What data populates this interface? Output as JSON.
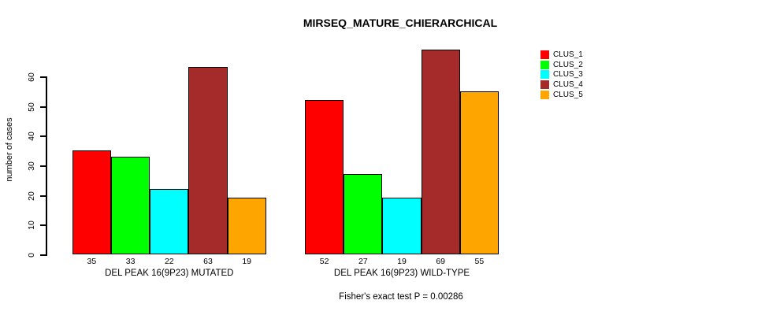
{
  "chart_data": {
    "type": "bar",
    "title": "MIRSEQ_MATURE_CHIERARCHICAL",
    "xlabel": "",
    "ylabel": "number of cases",
    "ylim": [
      0,
      70
    ],
    "yticks": [
      0,
      10,
      20,
      30,
      40,
      50,
      60
    ],
    "grid": false,
    "legend_position": "top-right",
    "categories": [
      "DEL PEAK 16(9P23) MUTATED",
      "DEL PEAK 16(9P23) WILD-TYPE"
    ],
    "series": [
      {
        "name": "CLUS_1",
        "color": "#FF0000",
        "values": [
          35,
          52
        ]
      },
      {
        "name": "CLUS_2",
        "color": "#00FF00",
        "values": [
          33,
          27
        ]
      },
      {
        "name": "CLUS_3",
        "color": "#00FFFF",
        "values": [
          22,
          19
        ]
      },
      {
        "name": "CLUS_4",
        "color": "#A52A2A",
        "values": [
          63,
          69
        ]
      },
      {
        "name": "CLUS_5",
        "color": "#FFA500",
        "values": [
          19,
          55
        ]
      }
    ],
    "bar_value_labels": {
      "DEL PEAK 16(9P23) MUTATED": [
        35,
        33,
        22,
        63,
        19
      ],
      "DEL PEAK 16(9P23) WILD-TYPE": [
        52,
        27,
        19,
        69,
        55
      ]
    },
    "annotation": "Fisher's exact test P = 0.00286"
  }
}
